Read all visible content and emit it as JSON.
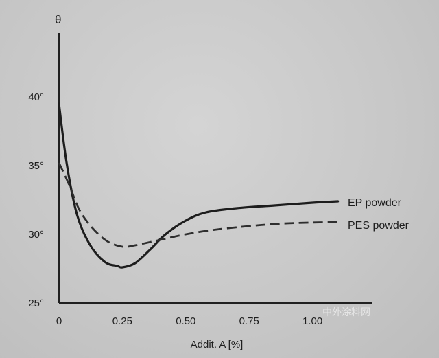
{
  "chart_data": {
    "type": "line",
    "title": "",
    "ylabel": "θ",
    "xlabel": "Addit. A [%]",
    "xlim": [
      0,
      1.25
    ],
    "ylim": [
      25,
      45
    ],
    "x_ticks": [
      {
        "value": 0,
        "label": "0"
      },
      {
        "value": 0.25,
        "label": "0.25"
      },
      {
        "value": 0.5,
        "label": "0.50"
      },
      {
        "value": 0.75,
        "label": "0.75"
      },
      {
        "value": 1.0,
        "label": "1.00"
      }
    ],
    "y_ticks": [
      {
        "value": 25,
        "label": "25°"
      },
      {
        "value": 30,
        "label": "30°"
      },
      {
        "value": 35,
        "label": "35°"
      },
      {
        "value": 40,
        "label": "40°"
      }
    ],
    "grid": false,
    "legend": "inline labels at right end of each curve",
    "series": [
      {
        "name": "EP powder",
        "style": "solid",
        "x": [
          0,
          0.03,
          0.07,
          0.12,
          0.18,
          0.23,
          0.25,
          0.3,
          0.36,
          0.42,
          0.5,
          0.58,
          0.7,
          0.85,
          1.0,
          1.1
        ],
        "y": [
          39.5,
          35.2,
          31.5,
          29.3,
          28.0,
          27.7,
          27.6,
          27.9,
          28.9,
          30.0,
          31.0,
          31.6,
          31.9,
          32.1,
          32.3,
          32.4
        ]
      },
      {
        "name": "PES powder",
        "style": "dashed",
        "x": [
          0,
          0.04,
          0.08,
          0.13,
          0.19,
          0.25,
          0.3,
          0.4,
          0.5,
          0.6,
          0.75,
          0.9,
          1.1
        ],
        "y": [
          35.2,
          33.6,
          31.8,
          30.5,
          29.5,
          29.1,
          29.2,
          29.6,
          30.0,
          30.3,
          30.6,
          30.8,
          30.9
        ]
      }
    ]
  },
  "watermark": {
    "text": "中外涂料网"
  }
}
